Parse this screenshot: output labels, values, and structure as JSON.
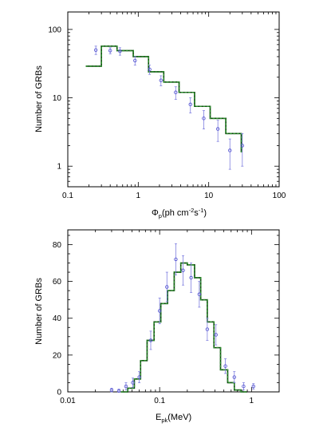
{
  "chart_data": [
    {
      "type": "step+scatter",
      "xlabel_main": "Φ",
      "xlabel_sub": "p",
      "xlabel_rest": "(ph cm",
      "xlabel_sup1": "-2",
      "xlabel_mid": "s",
      "xlabel_sup2": "-1",
      "xlabel_end": ")",
      "ylabel": "Number of GRBs",
      "xscale": "log",
      "yscale": "log",
      "xlim": [
        0.1,
        100
      ],
      "ylim": [
        0.5,
        180
      ],
      "x_ticks": [
        "0.1",
        "1",
        "10",
        "100"
      ],
      "y_ticks": [
        "1",
        "10",
        "100"
      ],
      "model_edges": [
        0.18,
        0.3,
        0.5,
        0.85,
        1.4,
        2.3,
        3.8,
        6.3,
        10.5,
        17.5,
        29
      ],
      "model_values": [
        29,
        57,
        49,
        40,
        24,
        17,
        12,
        7.5,
        5,
        3,
        1.6
      ],
      "model_tail": [
        29,
        33,
        0.9
      ],
      "points": [
        {
          "x": 0.25,
          "y": 50,
          "err": 7
        },
        {
          "x": 0.4,
          "y": 49,
          "err": 5
        },
        {
          "x": 0.55,
          "y": 48,
          "err": 6
        },
        {
          "x": 0.9,
          "y": 35,
          "err": 5
        },
        {
          "x": 1.45,
          "y": 26,
          "err": 4
        },
        {
          "x": 2.1,
          "y": 18,
          "err": 3
        },
        {
          "x": 3.4,
          "y": 12,
          "err": 2.5
        },
        {
          "x": 5.5,
          "y": 8,
          "err": 2
        },
        {
          "x": 8.5,
          "y": 5,
          "err": 1.5
        },
        {
          "x": 13.5,
          "y": 3.5,
          "err": 1.2
        },
        {
          "x": 20,
          "y": 1.7,
          "err": 0.8
        },
        {
          "x": 30,
          "y": 2,
          "err": 1
        }
      ]
    },
    {
      "type": "step+scatter",
      "xlabel_main": "E",
      "xlabel_sub": "pk",
      "xlabel_rest": "(MeV)",
      "ylabel": "Number of GRBs",
      "xscale": "log",
      "yscale": "linear",
      "xlim": [
        0.01,
        2
      ],
      "ylim": [
        0,
        88
      ],
      "x_ticks": [
        "0.01",
        "0.1",
        "1"
      ],
      "y_ticks": [
        "0",
        "20",
        "40",
        "60",
        "80"
      ],
      "model_edges": [
        0.038,
        0.045,
        0.053,
        0.062,
        0.073,
        0.087,
        0.103,
        0.122,
        0.144,
        0.17,
        0.2,
        0.24,
        0.28,
        0.33,
        0.39,
        0.46,
        0.55,
        0.65,
        0.77,
        0.9
      ],
      "model_values": [
        0,
        2,
        7,
        17,
        28,
        38,
        48,
        55,
        65,
        70,
        69,
        62,
        50,
        38,
        24,
        12,
        5,
        1,
        0
      ],
      "points": [
        {
          "x": 0.03,
          "y": 1,
          "err": 1
        },
        {
          "x": 0.036,
          "y": 0.5,
          "err": 1
        },
        {
          "x": 0.043,
          "y": 3,
          "err": 2
        },
        {
          "x": 0.051,
          "y": 5,
          "err": 2.5
        },
        {
          "x": 0.06,
          "y": 8,
          "err": 3
        },
        {
          "x": 0.08,
          "y": 28,
          "err": 5
        },
        {
          "x": 0.1,
          "y": 44,
          "err": 7
        },
        {
          "x": 0.12,
          "y": 57,
          "err": 8
        },
        {
          "x": 0.15,
          "y": 72,
          "err": 8.5
        },
        {
          "x": 0.18,
          "y": 66,
          "err": 8
        },
        {
          "x": 0.22,
          "y": 62,
          "err": 8
        },
        {
          "x": 0.27,
          "y": 53,
          "err": 7
        },
        {
          "x": 0.33,
          "y": 34,
          "err": 6
        },
        {
          "x": 0.41,
          "y": 31,
          "err": 5.5
        },
        {
          "x": 0.52,
          "y": 14,
          "err": 4
        },
        {
          "x": 0.65,
          "y": 8,
          "err": 3
        },
        {
          "x": 0.82,
          "y": 3,
          "err": 2
        },
        {
          "x": 1.05,
          "y": 3,
          "err": 1.5
        }
      ]
    }
  ]
}
